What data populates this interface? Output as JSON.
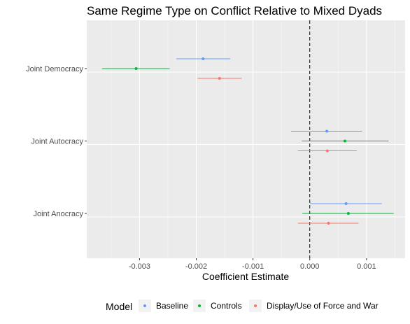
{
  "chart_data": {
    "type": "coefficient-plot",
    "title": "Same Regime Type on Conflict Relative to Mixed Dyads",
    "xlabel": "Coefficient Estimate",
    "ylabel": "",
    "xlim": [
      -0.00393,
      0.00168
    ],
    "x_ticks": [
      -0.003,
      -0.002,
      -0.001,
      0.0,
      0.001
    ],
    "x_tick_labels": [
      "-0.003",
      "-0.002",
      "-0.001",
      "0.000",
      "0.001"
    ],
    "categories": [
      "Joint Democracy",
      "Joint Autocracy",
      "Joint Anocracy"
    ],
    "reference_line": 0,
    "grid": true,
    "legend": {
      "title": "Model",
      "position": "bottom"
    },
    "series": [
      {
        "name": "Baseline",
        "color": "#619CFF",
        "points": [
          {
            "category": "Joint Democracy",
            "estimate": -0.00188,
            "low": -0.00235,
            "high": -0.0014
          },
          {
            "category": "Joint Autocracy",
            "estimate": 0.0003,
            "low": -0.00033,
            "high": 0.00092
          },
          {
            "category": "Joint Anocracy",
            "estimate": 0.00064,
            "low": 0.0,
            "high": 0.00127
          }
        ]
      },
      {
        "name": "Controls",
        "color": "#00BA38",
        "points": [
          {
            "category": "Joint Democracy",
            "estimate": -0.00306,
            "low": -0.00366,
            "high": -0.00247
          },
          {
            "category": "Joint Autocracy",
            "estimate": 0.00062,
            "low": -0.00014,
            "high": 0.00139
          },
          {
            "category": "Joint Anocracy",
            "estimate": 0.00068,
            "low": -0.00013,
            "high": 0.00148
          }
        ]
      },
      {
        "name": "Display/Use of Force and War",
        "color": "#F8766D",
        "points": [
          {
            "category": "Joint Democracy",
            "estimate": -0.00159,
            "low": -0.00198,
            "high": -0.0012
          },
          {
            "category": "Joint Autocracy",
            "estimate": 0.00031,
            "low": -0.00021,
            "high": 0.00083
          },
          {
            "category": "Joint Anocracy",
            "estimate": 0.00033,
            "low": -0.00021,
            "high": 0.00086
          }
        ]
      }
    ]
  }
}
